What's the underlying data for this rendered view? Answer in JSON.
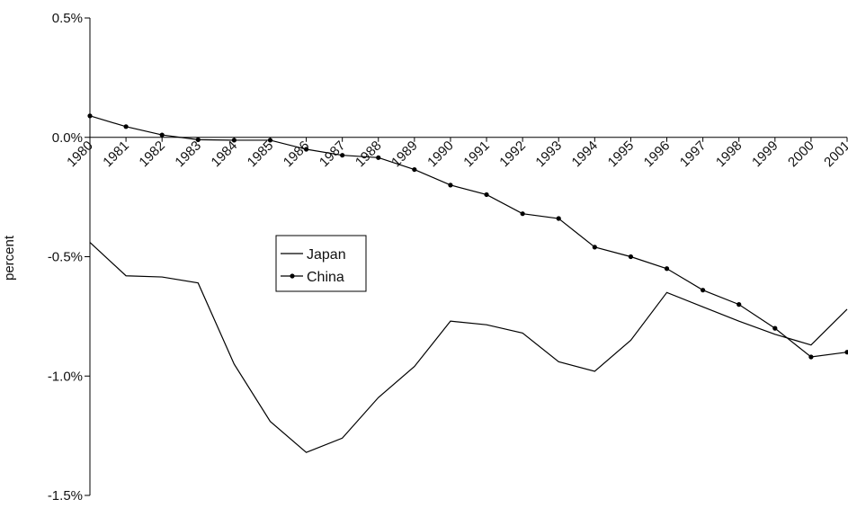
{
  "chart_data": {
    "type": "line",
    "title": "",
    "xlabel": "",
    "ylabel": "percent",
    "ylim": [
      -1.5,
      0.5
    ],
    "y_ticks": [
      "0.5%",
      "0.0%",
      "-0.5%",
      "-1.0%",
      "-1.5%"
    ],
    "y_tick_values": [
      0.5,
      0.0,
      -0.5,
      -1.0,
      -1.5
    ],
    "categories": [
      "1980",
      "1981",
      "1982",
      "1983",
      "1984",
      "1985",
      "1986",
      "1987",
      "1988",
      "1989",
      "1990",
      "1991",
      "1992",
      "1993",
      "1994",
      "1995",
      "1996",
      "1997",
      "1998",
      "1999",
      "2000",
      "2001"
    ],
    "legend_position": "center-left",
    "grid": false,
    "series": [
      {
        "name": "Japan",
        "marker": "none",
        "color": "#000000",
        "values": [
          -0.44,
          -0.58,
          -0.585,
          -0.61,
          -0.95,
          -1.19,
          -1.32,
          -1.26,
          -1.09,
          -0.96,
          -0.77,
          -0.785,
          -0.82,
          -0.94,
          -0.98,
          -0.85,
          -0.65,
          -0.71,
          -0.77,
          -0.825,
          -0.87,
          -0.72
        ]
      },
      {
        "name": "China",
        "marker": "dot",
        "color": "#000000",
        "values": [
          0.09,
          0.045,
          0.01,
          -0.01,
          -0.012,
          -0.012,
          -0.05,
          -0.075,
          -0.085,
          -0.135,
          -0.2,
          -0.24,
          -0.32,
          -0.34,
          -0.46,
          -0.5,
          -0.55,
          -0.64,
          -0.7,
          -0.8,
          -0.92,
          -0.9
        ]
      }
    ]
  }
}
